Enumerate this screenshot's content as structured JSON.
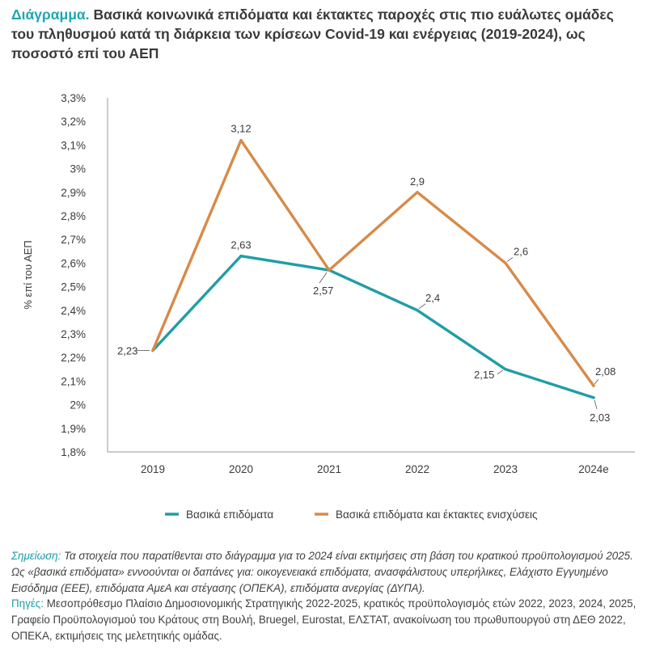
{
  "title": {
    "lead": "Διάγραμμα.",
    "text": "Βασικά κοινωνικά επιδόματα και έκτακτες παροχές στις πιο ευάλωτες ομάδες του πληθυσμού κατά τη διάρκεια των κρίσεων Covid-19 και ενέργειας (2019-2024), ως ποσοστό επί του ΑΕΠ"
  },
  "colors": {
    "accent": "#20a7ae",
    "series1": "#1f9ea6",
    "series2": "#d88a48",
    "axis": "#9a9a9a",
    "text": "#3a3a3a"
  },
  "chart_data": {
    "type": "line",
    "title": "Βασικά κοινωνικά επιδόματα και έκτακτες παροχές στις πιο ευάλωτες ομάδες του πληθυσμού κατά τη διάρκεια των κρίσεων Covid-19 και ενέργειας (2019-2024), ως ποσοστό επί του ΑΕΠ",
    "xlabel": "",
    "ylabel": "% επί του ΑΕΠ",
    "ylim": [
      1.8,
      3.3
    ],
    "ytick_step": 0.1,
    "yticks": [
      "1,8%",
      "1,9%",
      "2%",
      "2,1%",
      "2,2%",
      "2,3%",
      "2,4%",
      "2,5%",
      "2,6%",
      "2,7%",
      "2,8%",
      "2,9%",
      "3%",
      "3,1%",
      "3,2%",
      "3,3%"
    ],
    "categories": [
      "2019",
      "2020",
      "2021",
      "2022",
      "2023",
      "2024e"
    ],
    "grid": false,
    "legend": "bottom",
    "series": [
      {
        "name": "Βασικά επιδόματα",
        "color": "#1f9ea6",
        "values": [
          2.23,
          2.63,
          2.57,
          2.4,
          2.15,
          2.03
        ],
        "labels": [
          "2,23",
          "2,63",
          "2,57",
          "2,4",
          "2,15",
          "2,03"
        ]
      },
      {
        "name": "Βασικά επιδόματα και έκτακτες ενισχύσεις",
        "color": "#d88a48",
        "values": [
          2.23,
          3.12,
          2.57,
          2.9,
          2.6,
          2.08
        ],
        "labels": [
          "",
          "3,12",
          "",
          "2,9",
          "2,6",
          "2,08"
        ]
      }
    ]
  },
  "notes": {
    "note_label": "Σημείωση:",
    "note_text": "Τα στοιχεία που παρατίθενται στο διάγραμμα για το 2024 είναι εκτιμήσεις στη βάση του κρατικού προϋπολογισμού 2025. Ως «βασικά επιδόματα» εννοούνται οι δαπάνες για: οικογενειακά επιδόματα, ανασφάλιστους υπερήλικες, Ελάχιστο Εγγυημένο Εισόδημα (ΕΕΕ), επιδόματα ΑμεΑ και στέγασης (ΟΠΕΚΑ), επιδόματα ανεργίας (ΔΥΠΑ).",
    "sources_label": "Πηγές:",
    "sources_text": "Μεσοπρόθεσμο Πλαίσιο Δημοσιονομικής Στρατηγικής 2022-2025, κρατικός προϋπολογισμός ετών 2022, 2023, 2024, 2025, Γραφείο Προϋπολογισμού του Κράτους στη Βουλή, Bruegel, Eurostat, ΕΛΣΤΑΤ, ανακοίνωση του πρωθυπουργού στη ΔΕΘ 2022, ΟΠΕΚΑ, εκτιμήσεις της μελετητικής ομάδας."
  }
}
